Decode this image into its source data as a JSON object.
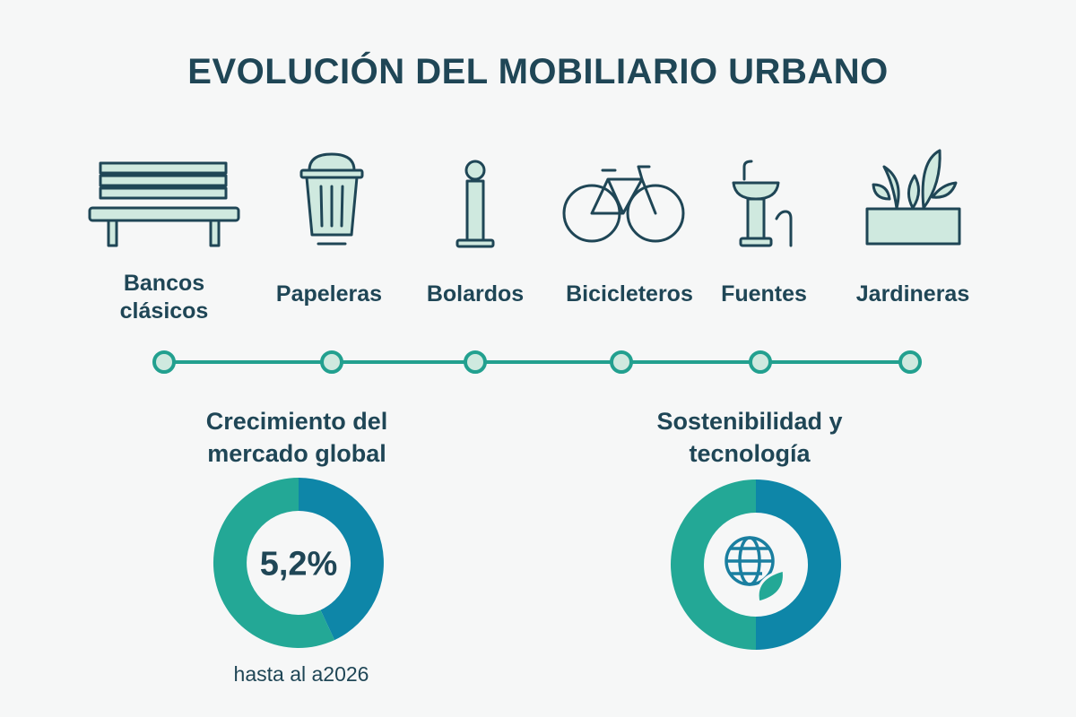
{
  "title": "EVOLUCIÓN DEL MOBILIARIO URBANO",
  "items": [
    {
      "label": "Bancos clásicos"
    },
    {
      "label": "Papeleras"
    },
    {
      "label": "Bolardos"
    },
    {
      "label": "Bicicleteros"
    },
    {
      "label": "Fuentes"
    },
    {
      "label": "Jardineras"
    }
  ],
  "stats": [
    {
      "heading": "Crecimiento del mercado global",
      "value": "5,2%",
      "caption": "hasta al a2026"
    },
    {
      "heading": "Sostenibilidad y tecnología"
    }
  ]
}
